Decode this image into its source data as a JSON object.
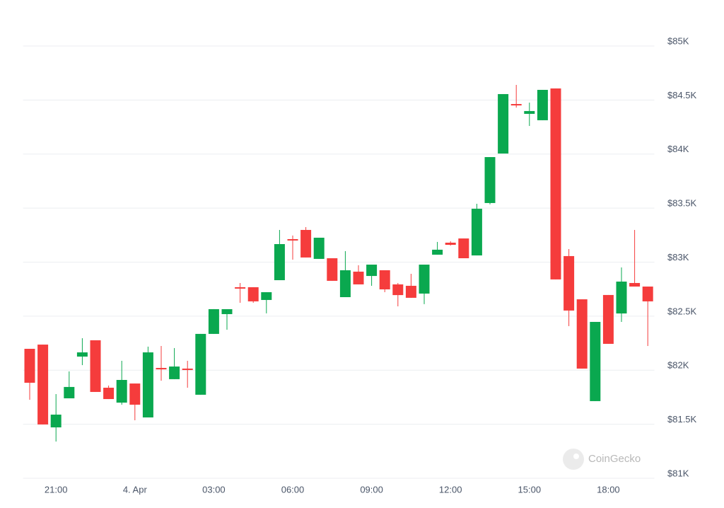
{
  "chart_data": {
    "type": "candlestick",
    "watermark": "CoinGecko",
    "categories": [
      null,
      null,
      "21:00",
      null,
      null,
      null,
      null,
      null,
      "4. Apr",
      null,
      null,
      null,
      null,
      null,
      "03:00",
      null,
      null,
      null,
      null,
      null,
      "06:00",
      null,
      null,
      null,
      null,
      null,
      "09:00",
      null,
      null,
      null,
      null,
      null,
      "12:00",
      null,
      null,
      null,
      null,
      null,
      "15:00",
      null,
      null,
      null,
      null,
      null,
      "18:00",
      null,
      null,
      null
    ],
    "open": [
      82198,
      82237,
      81471,
      81740,
      82126,
      82277,
      81838,
      81700,
      81877,
      81563,
      82021,
      81917,
      82015,
      81773,
      82336,
      82519,
      82768,
      82768,
      82650,
      82833,
      83213,
      83298,
      83030,
      83036,
      82676,
      82912,
      82872,
      82925,
      82794,
      82781,
      82709,
      83069,
      83180,
      83219,
      83062,
      83547,
      84005,
      84463,
      84372,
      84313,
      84607,
      83056,
      82656,
      81714,
      82696,
      82525,
      82807,
      82774
    ],
    "high": [
      82198,
      82237,
      81779,
      81989,
      82296,
      82277,
      81858,
      82087,
      81877,
      82218,
      82224,
      82205,
      82087,
      82336,
      82565,
      82565,
      82807,
      82768,
      82722,
      83298,
      83246,
      83324,
      83226,
      83036,
      83102,
      82971,
      82977,
      82925,
      82807,
      82892,
      82977,
      83187,
      83193,
      83219,
      83540,
      83972,
      84555,
      84640,
      84476,
      84594,
      84607,
      83121,
      82656,
      82447,
      82696,
      82951,
      83298,
      82774
    ],
    "low": [
      81727,
      81498,
      81340,
      81740,
      82047,
      81799,
      81733,
      81681,
      81537,
      81563,
      81903,
      81917,
      81838,
      81773,
      82336,
      82375,
      82624,
      82624,
      82526,
      82833,
      83023,
      83043,
      83030,
      82827,
      82676,
      82794,
      82781,
      82722,
      82591,
      82670,
      82611,
      83069,
      83154,
      83036,
      83062,
      83534,
      84005,
      84430,
      84260,
      84313,
      82840,
      82408,
      82015,
      81714,
      82244,
      82447,
      82774,
      82224
    ],
    "close": [
      81884,
      81498,
      81589,
      81845,
      82165,
      81799,
      81733,
      81910,
      81681,
      82165,
      82008,
      82034,
      82002,
      82336,
      82565,
      82565,
      82755,
      82637,
      82722,
      83167,
      83200,
      83043,
      83226,
      82827,
      82925,
      82794,
      82977,
      82748,
      82695,
      82670,
      82977,
      83115,
      83160,
      83036,
      83494,
      83972,
      84555,
      84450,
      84398,
      84594,
      82840,
      82552,
      82015,
      82447,
      82244,
      82820,
      82774,
      82637
    ],
    "up_color": "#0aa84f",
    "down_color": "#f53c3c",
    "ylim": [
      81000,
      85000
    ],
    "yticks": [
      {
        "value": 81000,
        "label": "$81K"
      },
      {
        "value": 81500,
        "label": "$81.5K"
      },
      {
        "value": 82000,
        "label": "$82K"
      },
      {
        "value": 82500,
        "label": "$82.5K"
      },
      {
        "value": 83000,
        "label": "$83K"
      },
      {
        "value": 83500,
        "label": "$83.5K"
      },
      {
        "value": 84000,
        "label": "$84K"
      },
      {
        "value": 84500,
        "label": "$84.5K"
      },
      {
        "value": 85000,
        "label": "$85K"
      }
    ],
    "grid": true
  }
}
